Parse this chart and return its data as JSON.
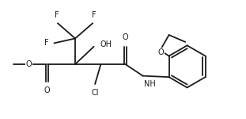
{
  "bg_color": "#ffffff",
  "line_color": "#1a1a1a",
  "line_width": 1.3,
  "font_size": 7.0,
  "figsize": [
    3.11,
    1.5
  ],
  "dpi": 100,
  "xlim": [
    0.0,
    10.5
  ],
  "ylim": [
    0.5,
    5.5
  ]
}
